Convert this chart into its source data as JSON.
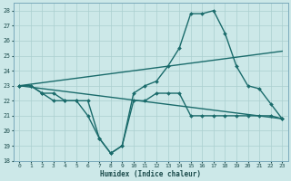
{
  "xlabel": "Humidex (Indice chaleur)",
  "xlim": [
    -0.5,
    23.5
  ],
  "ylim": [
    18,
    28.5
  ],
  "yticks": [
    18,
    19,
    20,
    21,
    22,
    23,
    24,
    25,
    26,
    27,
    28
  ],
  "xticks": [
    0,
    1,
    2,
    3,
    4,
    5,
    6,
    7,
    8,
    9,
    10,
    11,
    12,
    13,
    14,
    15,
    16,
    17,
    18,
    19,
    20,
    21,
    22,
    23
  ],
  "bg_color": "#cce8e8",
  "line_color": "#1a6b6b",
  "grid_color": "#aacfcf",
  "series": [
    {
      "x": [
        0,
        1,
        2,
        3,
        4,
        5,
        6,
        7,
        8,
        9,
        10,
        11,
        12,
        13,
        14,
        15,
        16,
        17,
        18,
        19,
        20,
        21,
        22,
        23
      ],
      "y": [
        23,
        23,
        22.5,
        22.0,
        22.0,
        22.0,
        21.0,
        19.5,
        18.5,
        19.0,
        22.0,
        22.0,
        22.5,
        22.5,
        22.5,
        21.0,
        21.0,
        21.0,
        21.0,
        21.0,
        21.0,
        21.0,
        21.0,
        20.8
      ],
      "marker": "D",
      "markersize": 2.0,
      "linewidth": 1.0
    },
    {
      "x": [
        0,
        1,
        2,
        3,
        4,
        5,
        6,
        7,
        8,
        9,
        10,
        11,
        12,
        13,
        14,
        15,
        16,
        17,
        18,
        19,
        20,
        21,
        22,
        23
      ],
      "y": [
        23,
        23,
        22.5,
        22.5,
        22.0,
        22.0,
        22.0,
        19.5,
        18.5,
        19.0,
        22.5,
        23.0,
        23.3,
        24.3,
        25.5,
        27.8,
        27.8,
        28.0,
        26.5,
        24.3,
        23.0,
        22.8,
        21.8,
        20.8
      ],
      "marker": "D",
      "markersize": 2.0,
      "linewidth": 1.0
    },
    {
      "x": [
        0,
        23
      ],
      "y": [
        23.0,
        25.3
      ],
      "marker": null,
      "markersize": 0,
      "linewidth": 1.0
    },
    {
      "x": [
        0,
        23
      ],
      "y": [
        23.0,
        20.8
      ],
      "marker": null,
      "markersize": 0,
      "linewidth": 1.0
    }
  ]
}
